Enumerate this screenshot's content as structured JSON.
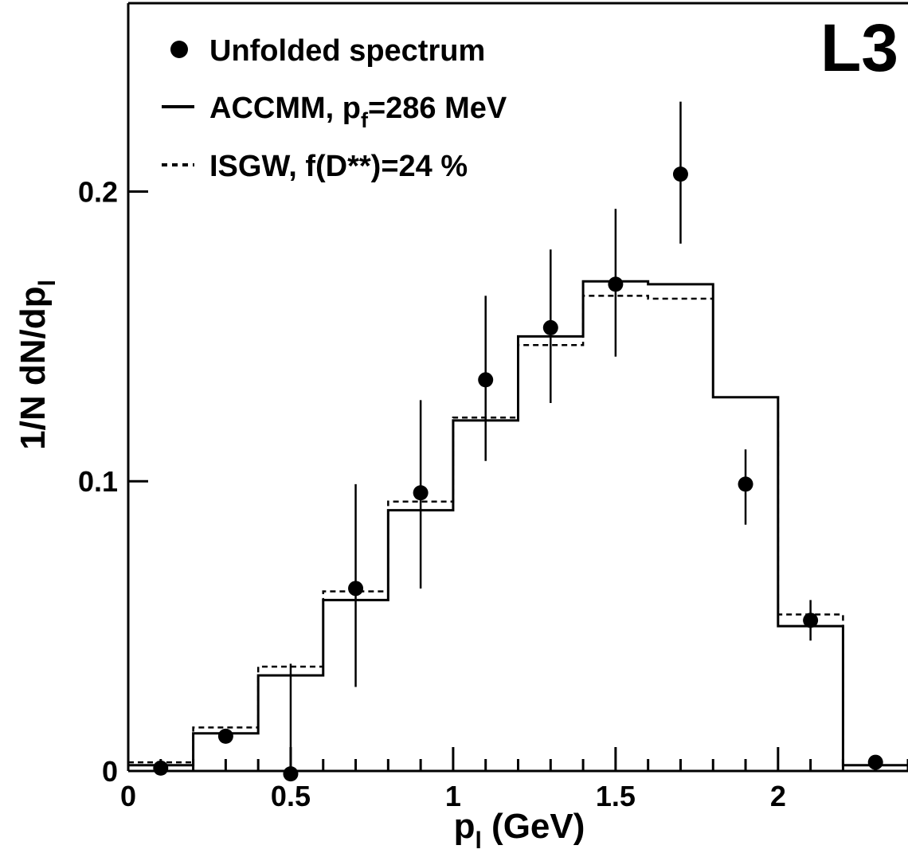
{
  "chart_data": {
    "type": "scatter",
    "badge": "L3",
    "xlabel": {
      "main": "p",
      "sub": "l",
      "rest": " (GeV)"
    },
    "ylabel": {
      "main": "1/N dN/dp",
      "sub": "l"
    },
    "xlim": [
      0,
      2.4
    ],
    "ylim": [
      0,
      0.265
    ],
    "x_ticks": [
      {
        "value": 0,
        "label": "0"
      },
      {
        "value": 0.5,
        "label": "0.5"
      },
      {
        "value": 1,
        "label": "1"
      },
      {
        "value": 1.5,
        "label": "1.5"
      },
      {
        "value": 2,
        "label": "2"
      }
    ],
    "y_ticks": [
      {
        "value": 0,
        "label": "0"
      },
      {
        "value": 0.1,
        "label": "0.1"
      },
      {
        "value": 0.2,
        "label": "0.2"
      }
    ],
    "grid": false,
    "legend_position": "top-left",
    "legend": [
      {
        "marker": "dot",
        "label_parts": [
          "Unfolded spectrum"
        ]
      },
      {
        "marker": "solid",
        "label_parts": [
          "ACCMM, p",
          "f",
          "=286 MeV"
        ]
      },
      {
        "marker": "dotted",
        "label_parts": [
          "ISGW, f(D**)=24 %"
        ]
      }
    ],
    "bin_edges": [
      0,
      0.2,
      0.4,
      0.6,
      0.8,
      1.0,
      1.2,
      1.4,
      1.6,
      1.8,
      2.0,
      2.2,
      2.4
    ],
    "series": [
      {
        "style": "points",
        "x": [
          0.1,
          0.3,
          0.5,
          0.7,
          0.9,
          1.1,
          1.3,
          1.5,
          1.7,
          1.9,
          2.1,
          2.3
        ],
        "y": [
          0.001,
          0.012,
          -0.001,
          0.063,
          0.096,
          0.135,
          0.153,
          0.168,
          0.206,
          0.099,
          0.052,
          0.003
        ],
        "y_low": [
          0.001,
          0.012,
          -0.001,
          0.029,
          0.063,
          0.107,
          0.127,
          0.143,
          0.182,
          0.085,
          0.045,
          0.003
        ],
        "y_high": [
          0.001,
          0.012,
          0.037,
          0.099,
          0.128,
          0.164,
          0.18,
          0.194,
          0.231,
          0.111,
          0.059,
          0.003
        ]
      },
      {
        "style": "solid-histogram",
        "values": [
          0.002,
          0.013,
          0.033,
          0.059,
          0.09,
          0.121,
          0.15,
          0.169,
          0.168,
          0.129,
          0.05,
          0.002
        ]
      },
      {
        "style": "dotted-histogram",
        "values": [
          0.003,
          0.015,
          0.036,
          0.062,
          0.093,
          0.122,
          0.147,
          0.164,
          0.163,
          0.129,
          0.054,
          0.002
        ]
      }
    ]
  }
}
